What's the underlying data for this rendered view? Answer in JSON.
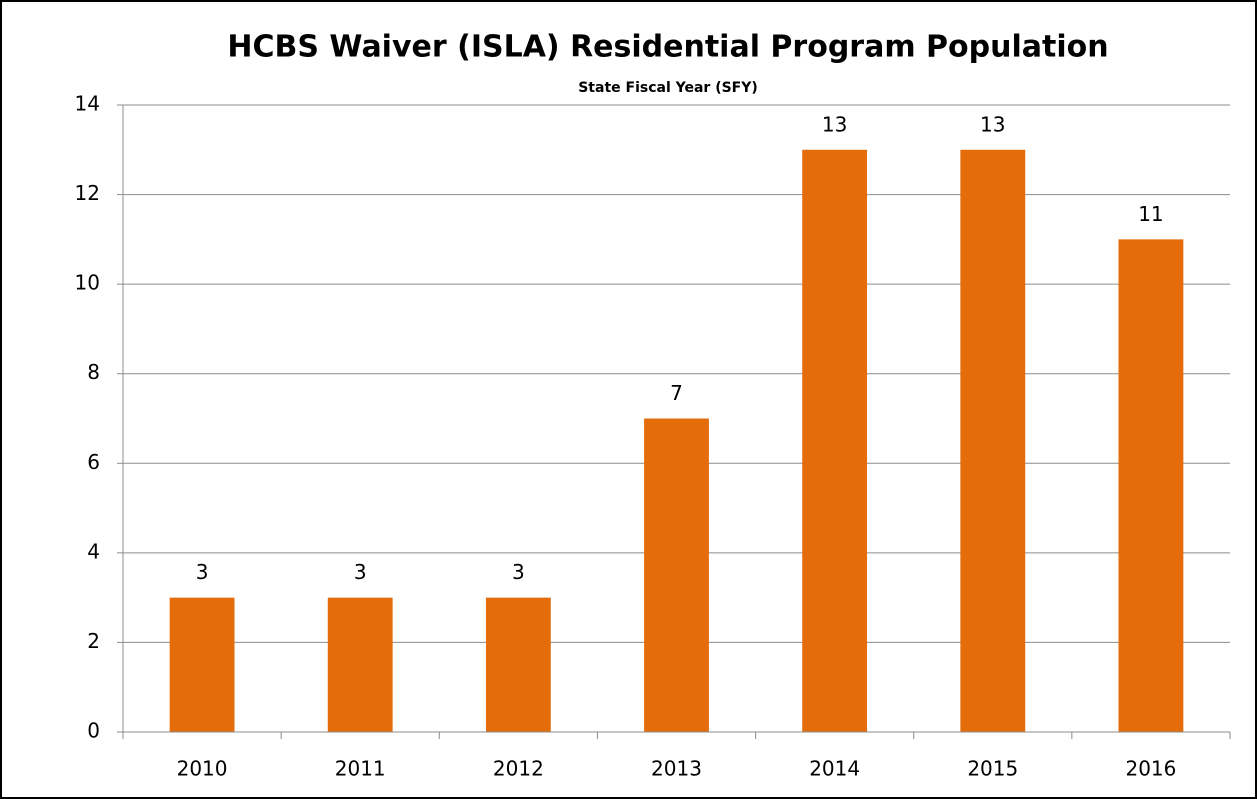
{
  "chart_data": {
    "type": "bar",
    "title": "HCBS Waiver (ISLA) Residential Program Population",
    "subtitle": "State Fiscal Year (SFY)",
    "categories": [
      "2010",
      "2011",
      "2012",
      "2013",
      "2014",
      "2015",
      "2016"
    ],
    "values": [
      3,
      3,
      3,
      7,
      13,
      13,
      11
    ],
    "color": "#e46c0a",
    "ylim": [
      0,
      14
    ],
    "yticks": [
      0,
      2,
      4,
      6,
      8,
      10,
      12,
      14
    ],
    "grid": true
  }
}
